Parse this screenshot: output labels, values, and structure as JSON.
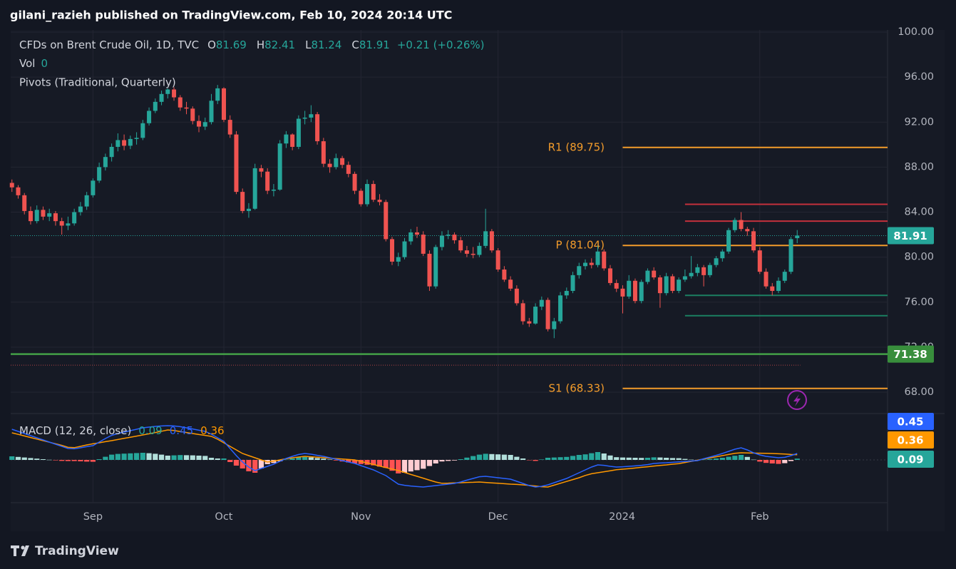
{
  "header": {
    "title": "gilani_razieh published on TradingView.com, Feb 10, 2024 20:14 UTC"
  },
  "chart_data": [
    {
      "type": "candlestick",
      "title": "CFDs on Brent Crude Oil, 1D, TVC",
      "ohlc_legend": [
        {
          "label": "O",
          "value": 81.69
        },
        {
          "label": "H",
          "value": 82.41
        },
        {
          "label": "L",
          "value": 81.24
        },
        {
          "label": "C",
          "value": 81.91
        }
      ],
      "change": "+0.21 (+0.26%)",
      "volume": {
        "label": "Vol",
        "value": 0
      },
      "indicator": "Pivots (Traditional, Quarterly)",
      "up_color": "#26a69a",
      "down_color": "#ef5350",
      "xlim": [
        -0.2,
        140.5
      ],
      "xticks": [
        {
          "value": 13,
          "label": "Sep"
        },
        {
          "value": 34,
          "label": "Oct"
        },
        {
          "value": 56,
          "label": "Nov"
        },
        {
          "value": 78,
          "label": "Dec"
        },
        {
          "value": 97.9,
          "label": "2024"
        },
        {
          "value": 120,
          "label": "Feb"
        }
      ],
      "ylim": [
        66.1,
        100.19
      ],
      "yticks": [
        {
          "value": 100,
          "label": "100.00"
        },
        {
          "value": 96,
          "label": "96.00"
        },
        {
          "value": 92,
          "label": "92.00"
        },
        {
          "value": 88,
          "label": "88.00"
        },
        {
          "value": 84,
          "label": "84.00"
        },
        {
          "value": 80,
          "label": "80.00"
        },
        {
          "value": 76,
          "label": "76.00"
        },
        {
          "value": 72,
          "label": "72.00"
        },
        {
          "value": 68,
          "label": "68.00"
        }
      ],
      "grid": true,
      "pivots": [
        {
          "label": "R1 (89.75)",
          "value": 89.75
        },
        {
          "label": "P (81.04)",
          "value": 81.04
        },
        {
          "label": "S1 (68.33)",
          "value": 68.33
        }
      ],
      "pivot_color": "#f39c2b",
      "red_levels": [
        84.7,
        83.2
      ],
      "red_level_color": "#c4303c",
      "green_levels": [
        76.6,
        74.8
      ],
      "green_level_color": "#1b7f61",
      "last_price": 81.91,
      "support_line": 71.38,
      "support_color": "#43a047",
      "dotted_line": 70.4,
      "ohlc": [
        [
          86.6,
          86.9,
          85.8,
          86.2
        ],
        [
          86.2,
          86.4,
          85.2,
          85.5
        ],
        [
          85.5,
          85.7,
          83.8,
          84.1
        ],
        [
          84.1,
          84.5,
          82.9,
          83.2
        ],
        [
          83.2,
          84.6,
          83.0,
          84.2
        ],
        [
          84.2,
          84.5,
          83.3,
          83.6
        ],
        [
          83.6,
          84.3,
          83.2,
          83.9
        ],
        [
          83.9,
          84.1,
          82.8,
          83.2
        ],
        [
          83.2,
          83.5,
          82.0,
          82.8
        ],
        [
          82.8,
          83.6,
          82.4,
          83.0
        ],
        [
          83.0,
          84.3,
          82.8,
          84.0
        ],
        [
          84.0,
          84.9,
          83.7,
          84.5
        ],
        [
          84.5,
          85.8,
          84.2,
          85.5
        ],
        [
          85.5,
          87.0,
          85.3,
          86.8
        ],
        [
          86.8,
          88.4,
          86.6,
          88.0
        ],
        [
          88.0,
          89.2,
          87.7,
          88.9
        ],
        [
          88.9,
          90.1,
          88.5,
          89.8
        ],
        [
          89.8,
          91.0,
          89.4,
          90.4
        ],
        [
          90.4,
          90.9,
          89.5,
          89.9
        ],
        [
          89.9,
          90.8,
          89.6,
          90.5
        ],
        [
          90.5,
          91.1,
          90.0,
          90.6
        ],
        [
          90.6,
          92.2,
          90.4,
          91.9
        ],
        [
          91.9,
          93.3,
          91.7,
          93.0
        ],
        [
          93.0,
          94.1,
          92.8,
          93.8
        ],
        [
          93.8,
          94.8,
          93.5,
          94.5
        ],
        [
          94.5,
          95.0,
          94.1,
          94.9
        ],
        [
          94.9,
          95.1,
          93.9,
          94.2
        ],
        [
          94.2,
          94.4,
          93.0,
          93.3
        ],
        [
          93.3,
          93.8,
          92.7,
          93.2
        ],
        [
          93.2,
          93.4,
          91.8,
          92.1
        ],
        [
          92.1,
          92.6,
          91.1,
          91.6
        ],
        [
          91.6,
          92.4,
          91.3,
          92.0
        ],
        [
          92.0,
          94.5,
          91.8,
          93.9
        ],
        [
          93.9,
          95.3,
          93.6,
          95.0
        ],
        [
          95.0,
          95.1,
          92.0,
          92.2
        ],
        [
          92.2,
          92.6,
          90.6,
          90.9
        ],
        [
          90.9,
          91.2,
          85.6,
          85.8
        ],
        [
          85.8,
          86.1,
          83.9,
          84.1
        ],
        [
          84.1,
          84.8,
          83.5,
          84.3
        ],
        [
          84.3,
          88.3,
          84.2,
          87.9
        ],
        [
          87.9,
          88.2,
          87.1,
          87.6
        ],
        [
          87.6,
          87.9,
          85.6,
          85.9
        ],
        [
          85.9,
          86.5,
          85.4,
          86.0
        ],
        [
          86.0,
          90.4,
          85.9,
          90.1
        ],
        [
          90.1,
          91.2,
          89.7,
          90.9
        ],
        [
          90.9,
          91.0,
          89.5,
          89.8
        ],
        [
          89.8,
          92.6,
          89.6,
          92.3
        ],
        [
          92.3,
          93.0,
          91.8,
          92.4
        ],
        [
          92.4,
          93.5,
          92.0,
          92.7
        ],
        [
          92.7,
          92.9,
          90.0,
          90.3
        ],
        [
          90.3,
          90.6,
          88.0,
          88.3
        ],
        [
          88.3,
          88.7,
          87.5,
          88.0
        ],
        [
          88.0,
          89.2,
          87.8,
          88.8
        ],
        [
          88.8,
          89.0,
          87.9,
          88.2
        ],
        [
          88.2,
          88.5,
          87.1,
          87.4
        ],
        [
          87.4,
          87.6,
          85.6,
          85.9
        ],
        [
          85.9,
          86.1,
          84.5,
          84.7
        ],
        [
          84.7,
          86.9,
          84.5,
          86.5
        ],
        [
          86.5,
          86.8,
          84.9,
          85.1
        ],
        [
          85.1,
          85.6,
          84.6,
          84.9
        ],
        [
          84.9,
          85.1,
          81.4,
          81.6
        ],
        [
          81.6,
          81.8,
          79.3,
          79.6
        ],
        [
          79.6,
          80.4,
          79.2,
          80.0
        ],
        [
          80.0,
          81.7,
          79.8,
          81.4
        ],
        [
          81.4,
          82.5,
          81.1,
          82.2
        ],
        [
          82.2,
          82.7,
          81.7,
          82.0
        ],
        [
          82.0,
          82.3,
          80.1,
          80.3
        ],
        [
          80.3,
          80.6,
          77.0,
          77.4
        ],
        [
          77.4,
          81.1,
          77.2,
          80.9
        ],
        [
          80.9,
          82.3,
          80.6,
          81.9
        ],
        [
          81.9,
          82.4,
          81.6,
          82.0
        ],
        [
          82.0,
          82.2,
          81.2,
          81.5
        ],
        [
          81.5,
          81.8,
          80.4,
          80.6
        ],
        [
          80.6,
          81.0,
          80.0,
          80.3
        ],
        [
          80.3,
          80.9,
          79.9,
          80.2
        ],
        [
          80.2,
          81.3,
          80.0,
          81.0
        ],
        [
          81.0,
          84.3,
          80.8,
          82.3
        ],
        [
          82.3,
          82.5,
          80.4,
          80.6
        ],
        [
          80.6,
          80.8,
          78.7,
          78.9
        ],
        [
          78.9,
          79.2,
          77.8,
          78.0
        ],
        [
          78.0,
          78.3,
          77.0,
          77.2
        ],
        [
          77.2,
          77.5,
          75.7,
          75.9
        ],
        [
          75.9,
          76.2,
          74.0,
          74.3
        ],
        [
          74.3,
          74.6,
          73.8,
          74.1
        ],
        [
          74.1,
          75.9,
          74.0,
          75.6
        ],
        [
          75.6,
          76.5,
          75.3,
          76.2
        ],
        [
          76.2,
          76.4,
          73.4,
          73.6
        ],
        [
          73.6,
          74.6,
          72.8,
          74.3
        ],
        [
          74.3,
          76.9,
          74.1,
          76.6
        ],
        [
          76.6,
          77.3,
          76.3,
          77.0
        ],
        [
          77.0,
          78.7,
          76.8,
          78.4
        ],
        [
          78.4,
          79.5,
          78.1,
          79.2
        ],
        [
          79.2,
          79.8,
          78.9,
          79.5
        ],
        [
          79.5,
          79.9,
          79.0,
          79.3
        ],
        [
          79.3,
          81.0,
          79.1,
          80.5
        ],
        [
          80.5,
          80.7,
          78.8,
          79.0
        ],
        [
          79.0,
          79.3,
          77.5,
          77.7
        ],
        [
          77.7,
          78.0,
          76.9,
          77.2
        ],
        [
          77.2,
          77.5,
          75.0,
          76.5
        ],
        [
          76.5,
          78.4,
          76.3,
          77.9
        ],
        [
          77.9,
          78.1,
          75.9,
          76.1
        ],
        [
          76.1,
          78.0,
          75.9,
          77.8
        ],
        [
          77.8,
          79.0,
          77.6,
          78.8
        ],
        [
          78.8,
          79.1,
          78.0,
          78.2
        ],
        [
          78.2,
          78.4,
          75.5,
          76.8
        ],
        [
          76.8,
          78.6,
          76.6,
          78.3
        ],
        [
          78.3,
          78.5,
          76.8,
          77.0
        ],
        [
          77.0,
          78.2,
          76.8,
          78.0
        ],
        [
          78.0,
          78.9,
          77.8,
          78.3
        ],
        [
          78.3,
          80.1,
          78.1,
          78.6
        ],
        [
          78.6,
          79.4,
          78.3,
          79.1
        ],
        [
          79.1,
          79.3,
          77.4,
          78.4
        ],
        [
          78.4,
          79.5,
          78.2,
          79.3
        ],
        [
          79.3,
          80.1,
          79.1,
          79.9
        ],
        [
          79.9,
          80.7,
          79.6,
          80.5
        ],
        [
          80.5,
          82.6,
          80.3,
          82.4
        ],
        [
          82.4,
          83.5,
          82.2,
          83.3
        ],
        [
          83.3,
          84.0,
          82.3,
          82.5
        ],
        [
          82.5,
          82.7,
          81.9,
          82.3
        ],
        [
          82.3,
          82.6,
          80.4,
          80.6
        ],
        [
          80.6,
          80.9,
          78.5,
          78.7
        ],
        [
          78.7,
          79.0,
          77.2,
          77.4
        ],
        [
          77.4,
          77.7,
          76.6,
          77.0
        ],
        [
          77.0,
          78.2,
          76.8,
          77.9
        ],
        [
          77.9,
          78.9,
          77.7,
          78.7
        ],
        [
          78.7,
          81.8,
          78.5,
          81.6
        ],
        [
          81.69,
          82.41,
          81.24,
          81.91
        ]
      ]
    },
    {
      "type": "macd",
      "title": "MACD (12, 26, close)",
      "ylim": [
        -3.0,
        3.1
      ],
      "histogram": {
        "last": 0.09,
        "color": "#26a69a",
        "values": [
          0.25,
          0.21,
          0.17,
          0.13,
          0.09,
          0.05,
          0.01,
          -0.03,
          -0.07,
          -0.08,
          -0.08,
          -0.1,
          -0.12,
          -0.13,
          0.05,
          0.22,
          0.37,
          0.42,
          0.44,
          0.46,
          0.48,
          0.5,
          0.47,
          0.43,
          0.37,
          0.3,
          0.32,
          0.34,
          0.33,
          0.32,
          0.3,
          0.28,
          0.15,
          0.1,
          0.1,
          -0.15,
          -0.4,
          -0.6,
          -0.8,
          -0.9,
          -0.6,
          -0.3,
          -0.22,
          -0.1,
          0.02,
          0.1,
          0.18,
          0.2,
          0.18,
          0.13,
          0.09,
          0.03,
          -0.04,
          -0.11,
          -0.18,
          -0.25,
          -0.29,
          -0.34,
          -0.38,
          -0.47,
          -0.56,
          -0.76,
          -0.95,
          -0.9,
          -0.81,
          -0.72,
          -0.62,
          -0.43,
          -0.25,
          -0.11,
          -0.07,
          -0.04,
          0.05,
          0.16,
          0.27,
          0.37,
          0.43,
          0.41,
          0.39,
          0.37,
          0.35,
          0.22,
          0.1,
          -0.01,
          -0.07,
          0.03,
          0.15,
          0.17,
          0.19,
          0.21,
          0.28,
          0.35,
          0.39,
          0.47,
          0.55,
          0.45,
          0.31,
          0.19,
          0.17,
          0.16,
          0.15,
          0.14,
          0.15,
          0.18,
          0.17,
          0.15,
          0.13,
          0.12,
          0.07,
          0.02,
          -0.03,
          0.02,
          0.06,
          0.1,
          0.15,
          0.22,
          0.29,
          0.35,
          0.21,
          0.02,
          -0.12,
          -0.21,
          -0.25,
          -0.28,
          -0.23,
          -0.08,
          0.09
        ]
      },
      "macd": {
        "last": 0.45,
        "color": "#2962ff",
        "values": [
          2.15,
          2.0,
          1.85,
          1.7,
          1.55,
          1.4,
          1.25,
          1.1,
          0.95,
          0.8,
          0.78,
          0.85,
          0.93,
          1.0,
          1.25,
          1.5,
          1.72,
          1.85,
          1.95,
          2.05,
          2.15,
          2.25,
          2.3,
          2.35,
          2.38,
          2.4,
          2.38,
          2.33,
          2.25,
          2.17,
          2.08,
          2.0,
          1.8,
          1.55,
          1.3,
          0.8,
          0.3,
          -0.15,
          -0.5,
          -0.75,
          -0.6,
          -0.45,
          -0.3,
          -0.1,
          0.1,
          0.25,
          0.38,
          0.45,
          0.4,
          0.32,
          0.25,
          0.15,
          0.05,
          -0.05,
          -0.15,
          -0.25,
          -0.4,
          -0.55,
          -0.7,
          -0.9,
          -1.1,
          -1.4,
          -1.7,
          -1.78,
          -1.83,
          -1.87,
          -1.9,
          -1.85,
          -1.8,
          -1.75,
          -1.7,
          -1.65,
          -1.55,
          -1.42,
          -1.3,
          -1.18,
          -1.15,
          -1.2,
          -1.25,
          -1.3,
          -1.35,
          -1.5,
          -1.65,
          -1.8,
          -1.9,
          -1.85,
          -1.75,
          -1.6,
          -1.45,
          -1.3,
          -1.1,
          -0.9,
          -0.7,
          -0.5,
          -0.35,
          -0.38,
          -0.45,
          -0.5,
          -0.48,
          -0.45,
          -0.42,
          -0.38,
          -0.33,
          -0.25,
          -0.22,
          -0.2,
          -0.17,
          -0.14,
          -0.11,
          -0.08,
          -0.05,
          0.08,
          0.2,
          0.32,
          0.45,
          0.6,
          0.75,
          0.85,
          0.7,
          0.5,
          0.35,
          0.25,
          0.2,
          0.15,
          0.18,
          0.3,
          0.45
        ]
      },
      "signal": {
        "last": 0.36,
        "color": "#ff9800",
        "values": [
          1.9,
          1.79,
          1.68,
          1.57,
          1.46,
          1.35,
          1.24,
          1.13,
          1.02,
          0.88,
          0.86,
          0.95,
          1.05,
          1.13,
          1.2,
          1.28,
          1.35,
          1.43,
          1.51,
          1.59,
          1.67,
          1.75,
          1.83,
          1.92,
          2.01,
          2.1,
          2.06,
          1.99,
          1.92,
          1.85,
          1.78,
          1.72,
          1.65,
          1.45,
          1.2,
          0.95,
          0.7,
          0.45,
          0.3,
          0.15,
          0.0,
          -0.15,
          -0.08,
          0.0,
          0.08,
          0.15,
          0.2,
          0.25,
          0.22,
          0.19,
          0.16,
          0.12,
          0.09,
          0.06,
          0.03,
          0.0,
          -0.11,
          -0.21,
          -0.32,
          -0.43,
          -0.54,
          -0.64,
          -0.75,
          -0.88,
          -1.02,
          -1.15,
          -1.28,
          -1.42,
          -1.55,
          -1.64,
          -1.63,
          -1.61,
          -1.6,
          -1.58,
          -1.57,
          -1.55,
          -1.58,
          -1.61,
          -1.64,
          -1.67,
          -1.7,
          -1.72,
          -1.75,
          -1.79,
          -1.83,
          -1.88,
          -1.9,
          -1.77,
          -1.64,
          -1.51,
          -1.38,
          -1.25,
          -1.09,
          -0.97,
          -0.9,
          -0.83,
          -0.76,
          -0.69,
          -0.65,
          -0.61,
          -0.57,
          -0.52,
          -0.48,
          -0.43,
          -0.39,
          -0.35,
          -0.3,
          -0.26,
          -0.18,
          -0.1,
          -0.02,
          0.06,
          0.14,
          0.22,
          0.3,
          0.38,
          0.46,
          0.5,
          0.49,
          0.48,
          0.47,
          0.46,
          0.45,
          0.43,
          0.41,
          0.38,
          0.36
        ]
      }
    }
  ],
  "footer": {
    "brand": "TradingView"
  }
}
